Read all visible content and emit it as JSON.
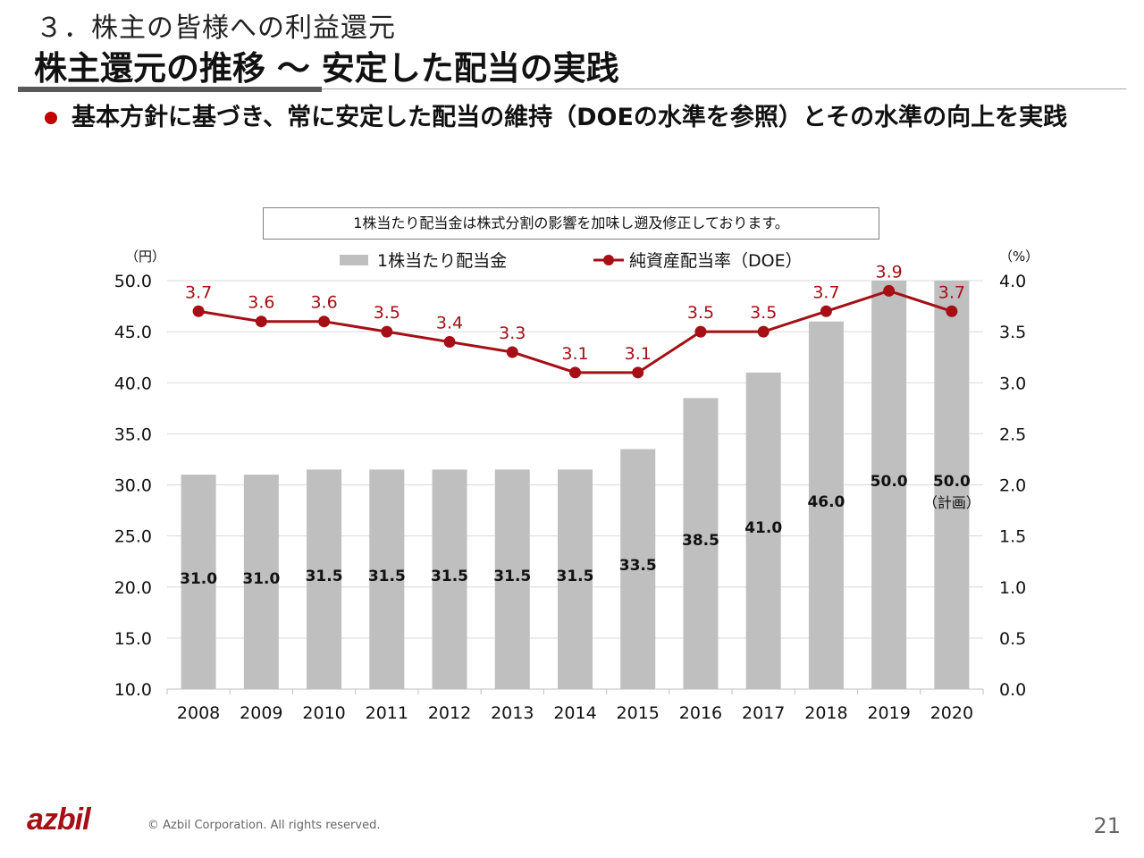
{
  "header": {
    "section_title": "３．株主の皆様への利益還元",
    "main_title": "株主還元の推移 ～ 安定した配当の実践",
    "bullet_text": "基本方針に基づき、常に安定した配当の維持（DOEの水準を参照）とその水準の向上を実践"
  },
  "note": "1株当たり配当金は株式分割の影響を加味し遡及修正しております。",
  "footer": {
    "logo": "azbil",
    "copyright": "© Azbil Corporation. All rights reserved.",
    "page_number": "21"
  },
  "colors": {
    "bar": "#bfbfbf",
    "line": "#a50f15",
    "bullet": "#c00000",
    "grid": "#d9d9d9"
  },
  "chart_data": {
    "type": "bar+line",
    "title": "",
    "categories": [
      "2008",
      "2009",
      "2010",
      "2011",
      "2012",
      "2013",
      "2014",
      "2015",
      "2016",
      "2017",
      "2018",
      "2019",
      "2020"
    ],
    "series": [
      {
        "name": "1株当たり配当金",
        "type": "bar",
        "axis": "left",
        "values": [
          31.0,
          31.0,
          31.5,
          31.5,
          31.5,
          31.5,
          31.5,
          33.5,
          38.5,
          41.0,
          46.0,
          50.0,
          50.0
        ],
        "labels": [
          "31.0",
          "31.0",
          "31.5",
          "31.5",
          "31.5",
          "31.5",
          "31.5",
          "33.5",
          "38.5",
          "41.0",
          "46.0",
          "50.0",
          "50.0"
        ],
        "label_notes": [
          "",
          "",
          "",
          "",
          "",
          "",
          "",
          "",
          "",
          "",
          "",
          "",
          "（計画）"
        ]
      },
      {
        "name": "純資産配当率（DOE）",
        "type": "line",
        "axis": "right",
        "values": [
          3.7,
          3.6,
          3.6,
          3.5,
          3.4,
          3.3,
          3.1,
          3.1,
          3.5,
          3.5,
          3.7,
          3.9,
          3.7
        ],
        "labels": [
          "3.7",
          "3.6",
          "3.6",
          "3.5",
          "3.4",
          "3.3",
          "3.1",
          "3.1",
          "3.5",
          "3.5",
          "3.7",
          "3.9",
          "3.7"
        ]
      }
    ],
    "y_left": {
      "label": "（円）",
      "ylim": [
        10.0,
        50.0
      ],
      "ticks": [
        "10.0",
        "15.0",
        "20.0",
        "25.0",
        "30.0",
        "35.0",
        "40.0",
        "45.0",
        "50.0"
      ]
    },
    "y_right": {
      "label": "（%）",
      "ylim": [
        0.0,
        4.0
      ],
      "ticks": [
        "0.0",
        "0.5",
        "1.0",
        "1.5",
        "2.0",
        "2.5",
        "3.0",
        "3.5",
        "4.0"
      ]
    },
    "grid": true,
    "legend": {
      "placement": "top-center",
      "entries": [
        "1株当たり配当金",
        "純資産配当率（DOE）"
      ]
    }
  }
}
